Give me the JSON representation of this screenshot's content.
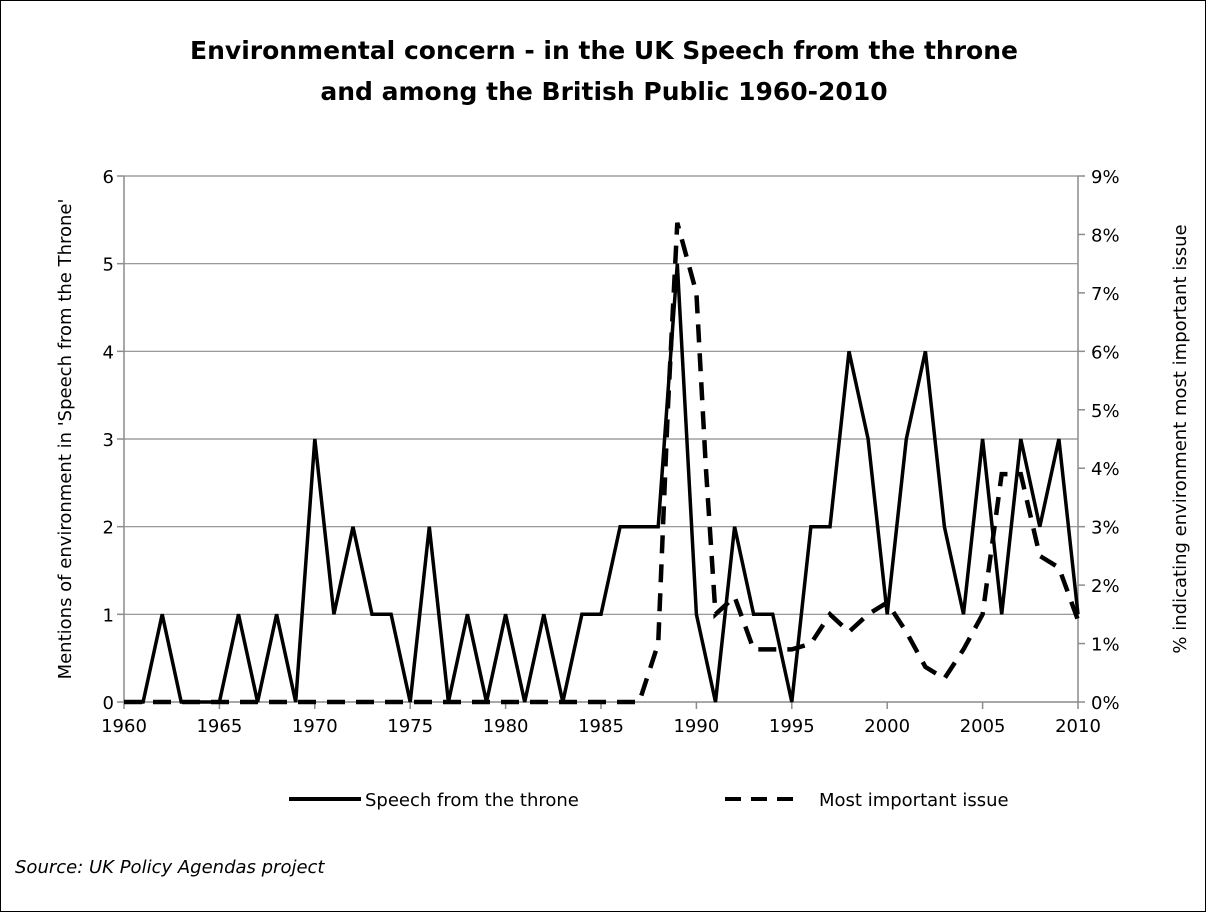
{
  "chart_data": {
    "type": "line",
    "title_lines": [
      "Environmental concern - in the UK Speech from the throne",
      "and among the British Public 1960-2010"
    ],
    "ylabel_left": "Mentions of environment in 'Speech from the Throne'",
    "ylabel_right": "% indicating environment most important issue",
    "x_ticks": [
      "1960",
      "1965",
      "1970",
      "1975",
      "1980",
      "1985",
      "1990",
      "1995",
      "2000",
      "2005",
      "2010"
    ],
    "y_left_ticks": [
      "0",
      "1",
      "2",
      "3",
      "4",
      "5",
      "6"
    ],
    "y_right_ticks": [
      "0%",
      "1%",
      "2%",
      "3%",
      "4%",
      "5%",
      "6%",
      "7%",
      "8%",
      "9%"
    ],
    "xlim": [
      1960,
      2010
    ],
    "ylim_left": [
      0,
      6
    ],
    "ylim_right": [
      0,
      9
    ],
    "grid": "horizontal",
    "legend_position": "bottom",
    "source": "Source: UK Policy Agendas project",
    "series": [
      {
        "name": "Speech from the throne",
        "axis": "left",
        "style": "solid",
        "points": [
          [
            1960,
            0
          ],
          [
            1961,
            0
          ],
          [
            1962,
            1
          ],
          [
            1963,
            0
          ],
          [
            1964,
            0
          ],
          [
            1965,
            0
          ],
          [
            1966,
            1
          ],
          [
            1967,
            0
          ],
          [
            1968,
            1
          ],
          [
            1969,
            0
          ],
          [
            1970,
            3
          ],
          [
            1971,
            1
          ],
          [
            1972,
            2
          ],
          [
            1973,
            1
          ],
          [
            1974,
            1
          ],
          [
            1975,
            0
          ],
          [
            1976,
            2
          ],
          [
            1977,
            0
          ],
          [
            1978,
            1
          ],
          [
            1979,
            0
          ],
          [
            1980,
            1
          ],
          [
            1981,
            0
          ],
          [
            1982,
            1
          ],
          [
            1983,
            0
          ],
          [
            1984,
            1
          ],
          [
            1985,
            1
          ],
          [
            1986,
            2
          ],
          [
            1987,
            2
          ],
          [
            1988,
            2
          ],
          [
            1989,
            5
          ],
          [
            1990,
            1
          ],
          [
            1991,
            0
          ],
          [
            1992,
            2
          ],
          [
            1993,
            1
          ],
          [
            1994,
            1
          ],
          [
            1995,
            0
          ],
          [
            1996,
            2
          ],
          [
            1997,
            2
          ],
          [
            1998,
            4
          ],
          [
            1999,
            3
          ],
          [
            2000,
            1
          ],
          [
            2001,
            3
          ],
          [
            2002,
            4
          ],
          [
            2003,
            2
          ],
          [
            2004,
            1
          ],
          [
            2005,
            3
          ],
          [
            2006,
            1
          ],
          [
            2007,
            3
          ],
          [
            2008,
            2
          ],
          [
            2009,
            3
          ],
          [
            2010,
            1
          ]
        ]
      },
      {
        "name": "Most important issue",
        "axis": "right",
        "style": "dashed",
        "points": [
          [
            1960,
            0
          ],
          [
            1986,
            0
          ],
          [
            1987,
            0
          ],
          [
            1988,
            1.0
          ],
          [
            1988.5,
            5.0
          ],
          [
            1989,
            8.2
          ],
          [
            1990,
            7.0
          ],
          [
            1990.5,
            4.0
          ],
          [
            1991,
            1.5
          ],
          [
            1992,
            1.8
          ],
          [
            1993,
            0.9
          ],
          [
            1994,
            0.9
          ],
          [
            1995,
            0.9
          ],
          [
            1996,
            1.0
          ],
          [
            1997,
            1.5
          ],
          [
            1998,
            1.2
          ],
          [
            1999,
            1.5
          ],
          [
            2000,
            1.7
          ],
          [
            2001,
            1.2
          ],
          [
            2002,
            0.6
          ],
          [
            2003,
            0.4
          ],
          [
            2004,
            0.9
          ],
          [
            2005,
            1.5
          ],
          [
            2006,
            3.9
          ],
          [
            2007,
            3.9
          ],
          [
            2008,
            2.5
          ],
          [
            2009,
            2.3
          ],
          [
            2010,
            1.4
          ]
        ]
      }
    ]
  }
}
